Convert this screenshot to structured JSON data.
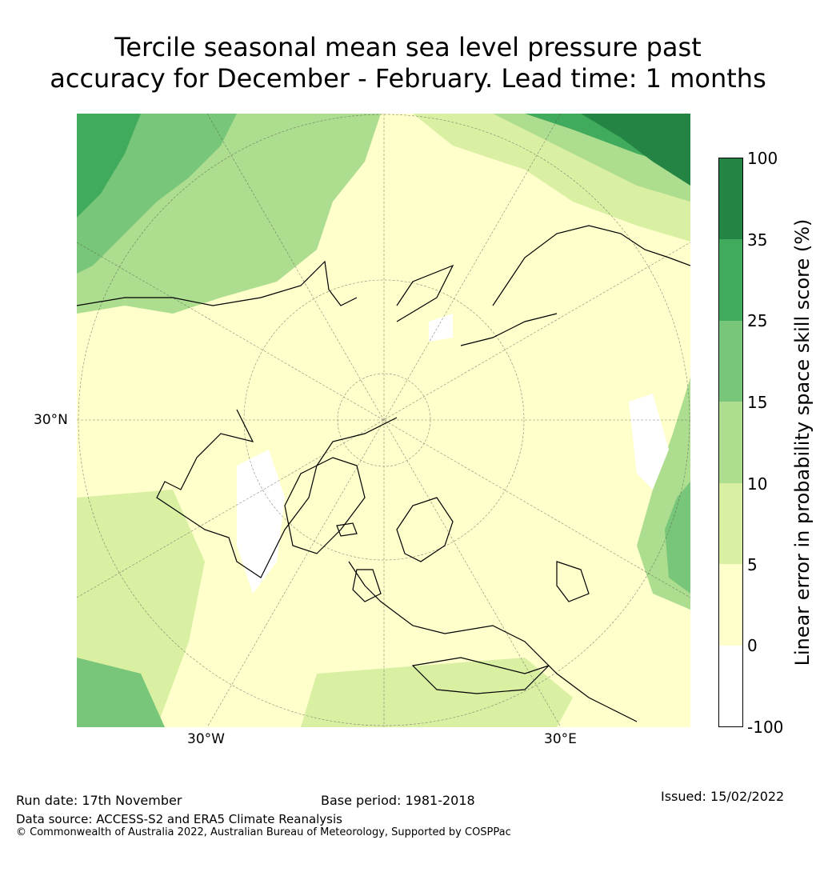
{
  "title": {
    "line1": "Tercile seasonal mean sea level pressure past",
    "line2": "accuracy for December - February. Lead time: 1 months"
  },
  "map": {
    "projection": "north-polar-stereographic",
    "lat_labels": [
      "30°N"
    ],
    "lon_labels": [
      "30°W",
      "30°E"
    ]
  },
  "colorbar": {
    "title": "Linear error in probability space skill score (%)",
    "ticks": [
      "100",
      "35",
      "25",
      "15",
      "10",
      "5",
      "0",
      "-100"
    ],
    "colors": [
      "#238443",
      "#41ab5d",
      "#78c679",
      "#addd8e",
      "#d9f0a3",
      "#ffffcc",
      "#ffffff"
    ]
  },
  "footer": {
    "run_date": "Run date: 17th November",
    "base_period": "Base period: 1981-2018",
    "issued": "Issued: 15/02/2022",
    "data_source": "Data source: ACCESS-S2 and ERA5 Climate Reanalysis",
    "copyright": "© Commonwealth of Australia 2022, Australian Bureau of Meteorology, Supported by COSPPac"
  }
}
